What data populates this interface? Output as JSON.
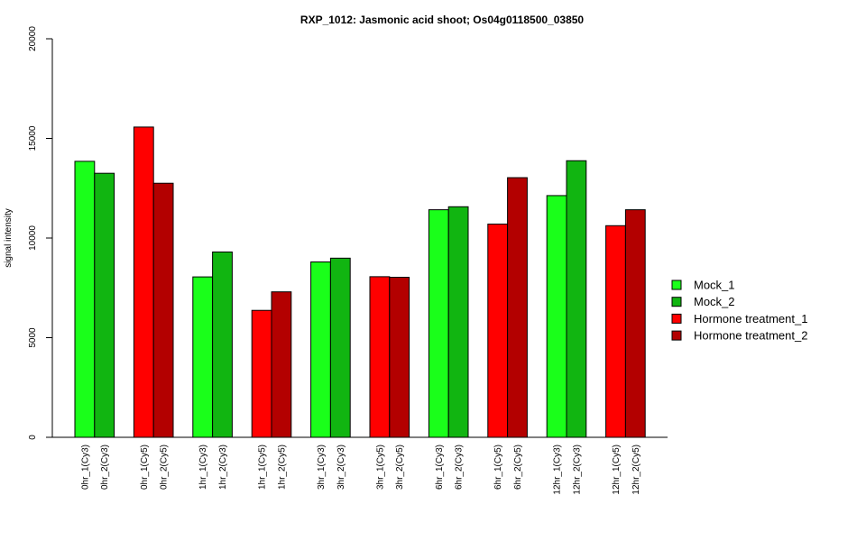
{
  "chart_data": {
    "type": "bar",
    "title": "RXP_1012: Jasmonic acid shoot; Os04g0118500_03850",
    "xlabel": "",
    "ylabel": "signal intensity",
    "ylim": [
      0,
      20000
    ],
    "yticks": [
      "0",
      "5000",
      "10000",
      "15000",
      "20000"
    ],
    "legend_position": "right",
    "legend": [
      {
        "label": "Mock_1",
        "color": "#1aff1a"
      },
      {
        "label": "Mock_2",
        "color": "#11b511"
      },
      {
        "label": "Hormone treatment_1",
        "color": "#ff0000"
      },
      {
        "label": "Hormone treatment_2",
        "color": "#b30000"
      }
    ],
    "bars": [
      {
        "label": "0hr_1(Cy3)",
        "value": 13850,
        "color": "#1aff1a"
      },
      {
        "label": "0hr_2(Cy3)",
        "value": 13250,
        "color": "#11b511"
      },
      {
        "label": "0hr_1(Cy5)",
        "value": 15570,
        "color": "#ff0000"
      },
      {
        "label": "0hr_2(Cy5)",
        "value": 12750,
        "color": "#b30000"
      },
      {
        "label": "1hr_1(Cy3)",
        "value": 8050,
        "color": "#1aff1a"
      },
      {
        "label": "1hr_2(Cy3)",
        "value": 9300,
        "color": "#11b511"
      },
      {
        "label": "1hr_1(Cy5)",
        "value": 6370,
        "color": "#ff0000"
      },
      {
        "label": "1hr_2(Cy5)",
        "value": 7300,
        "color": "#b30000"
      },
      {
        "label": "3hr_1(Cy3)",
        "value": 8800,
        "color": "#1aff1a"
      },
      {
        "label": "3hr_2(Cy3)",
        "value": 8990,
        "color": "#11b511"
      },
      {
        "label": "3hr_1(Cy5)",
        "value": 8060,
        "color": "#ff0000"
      },
      {
        "label": "3hr_2(Cy5)",
        "value": 8030,
        "color": "#b30000"
      },
      {
        "label": "6hr_1(Cy3)",
        "value": 11420,
        "color": "#1aff1a"
      },
      {
        "label": "6hr_2(Cy3)",
        "value": 11570,
        "color": "#11b511"
      },
      {
        "label": "6hr_1(Cy5)",
        "value": 10700,
        "color": "#ff0000"
      },
      {
        "label": "6hr_2(Cy5)",
        "value": 13030,
        "color": "#b30000"
      },
      {
        "label": "12hr_1(Cy3)",
        "value": 12130,
        "color": "#1aff1a"
      },
      {
        "label": "12hr_2(Cy3)",
        "value": 13880,
        "color": "#11b511"
      },
      {
        "label": "12hr_1(Cy5)",
        "value": 10620,
        "color": "#ff0000"
      },
      {
        "label": "12hr_2(Cy5)",
        "value": 11420,
        "color": "#b30000"
      }
    ]
  }
}
